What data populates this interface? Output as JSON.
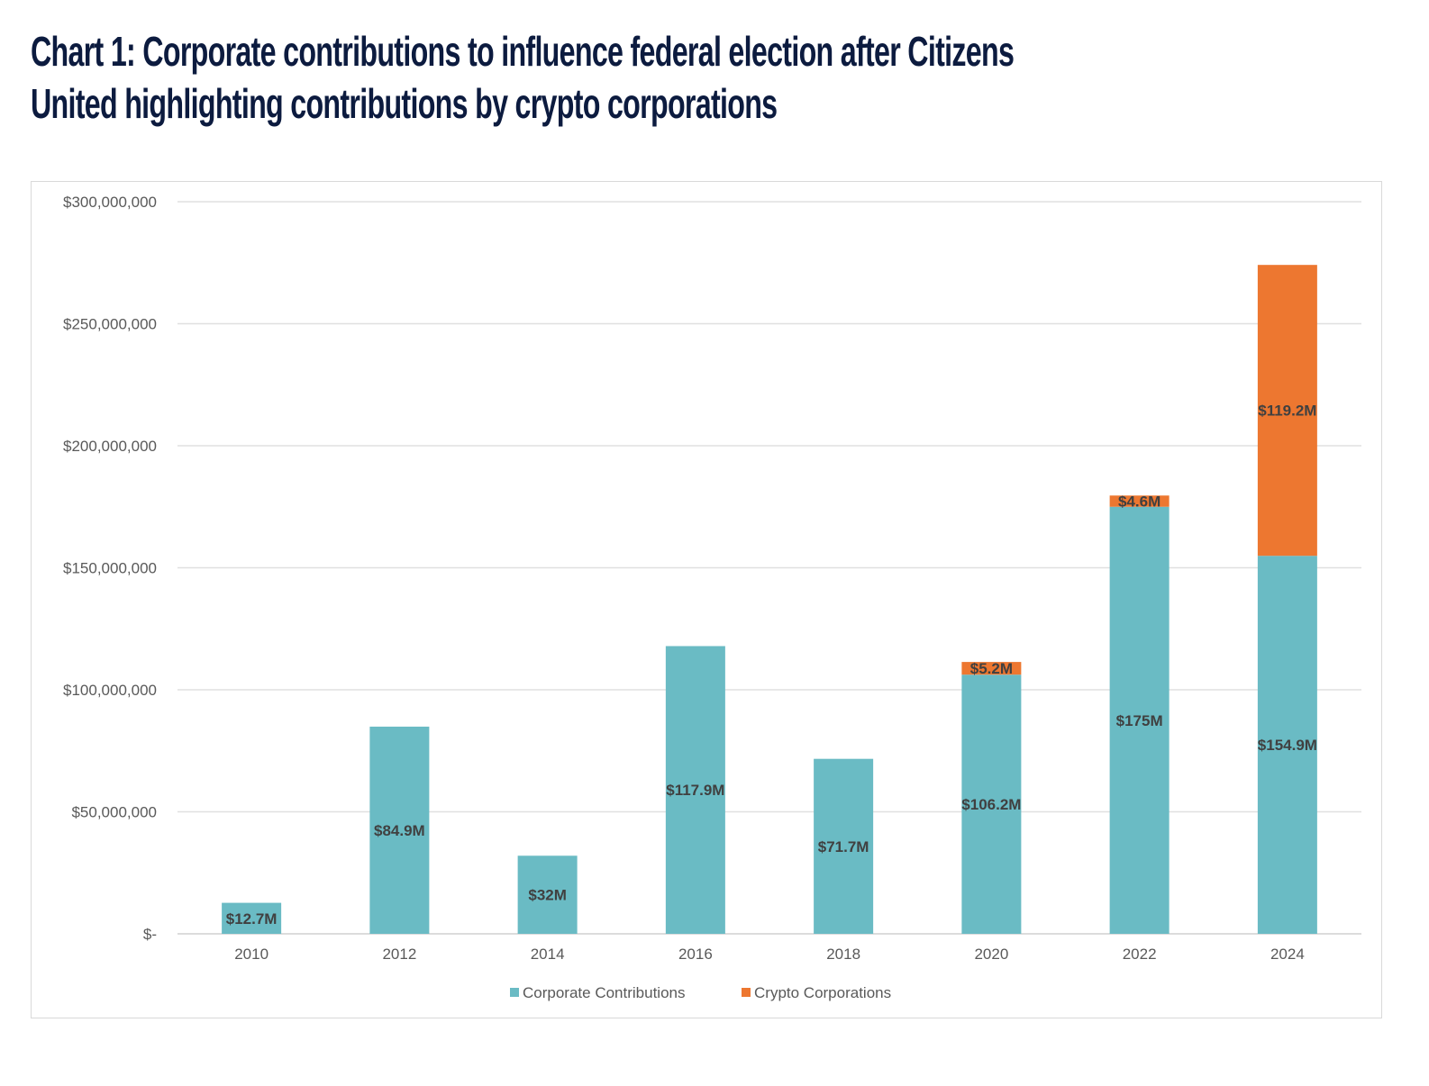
{
  "title_lines": [
    "Chart 1: Corporate contributions to influence federal election after Citizens",
    "United highlighting contributions by crypto corporations"
  ],
  "chart_data": {
    "type": "bar",
    "stacked": true,
    "title": "Chart 1: Corporate contributions to influence federal election after Citizens United highlighting contributions by crypto corporations",
    "categories": [
      "2010",
      "2012",
      "2014",
      "2016",
      "2018",
      "2020",
      "2022",
      "2024"
    ],
    "series": [
      {
        "name": "Corporate Contributions",
        "color": "#6abbc4",
        "values": [
          12.7,
          84.9,
          32,
          117.9,
          71.7,
          106.2,
          175,
          154.9
        ],
        "labels": [
          "$12.7M",
          "$84.9M",
          "$32M",
          "$117.9M",
          "$71.7M",
          "$106.2M",
          "$175M",
          "$154.9M"
        ]
      },
      {
        "name": "Crypto Corporations",
        "color": "#ed7730",
        "values": [
          0,
          0,
          0,
          0,
          0,
          5.2,
          4.6,
          119.2
        ],
        "labels": [
          "",
          "",
          "",
          "",
          "",
          "$5.2M",
          "$4.6M",
          "$119.2M"
        ]
      }
    ],
    "value_unit": "millions USD",
    "ylim": [
      0,
      300
    ],
    "yticks": [
      0,
      50,
      100,
      150,
      200,
      250,
      300
    ],
    "ytick_labels": [
      "$-",
      "$50,000,000",
      "$100,000,000",
      "$150,000,000",
      "$200,000,000",
      "$250,000,000",
      "$300,000,000"
    ],
    "xlabel": "",
    "ylabel": "",
    "grid": true,
    "legend": "bottom"
  }
}
